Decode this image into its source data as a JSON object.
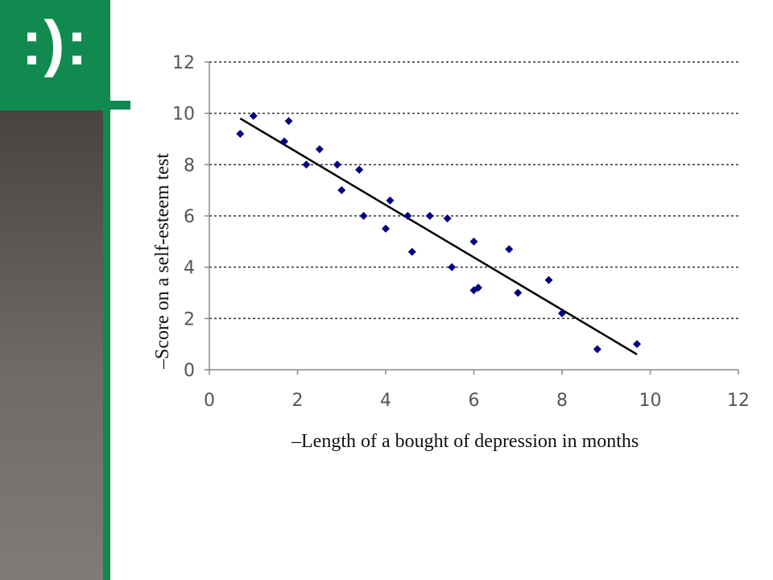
{
  "logo": {
    "text": ":):"
  },
  "colors": {
    "brand_green": "#118a4f",
    "marker": "#000080",
    "trendline": "#000000"
  },
  "chart_data": {
    "type": "scatter",
    "title": "",
    "xlabel": "–Length of a bought of depression in months",
    "ylabel": "–Score on a self-esteem test",
    "xlim": [
      0,
      12
    ],
    "ylim": [
      0,
      12
    ],
    "x_ticks": [
      0,
      2,
      4,
      6,
      8,
      10,
      12
    ],
    "y_ticks": [
      0,
      2,
      4,
      6,
      8,
      10,
      12
    ],
    "grid": "horizontal dashed",
    "legend": "none",
    "marker": "diamond",
    "points": [
      [
        0.7,
        9.2
      ],
      [
        1.0,
        9.9
      ],
      [
        1.7,
        8.9
      ],
      [
        1.8,
        9.7
      ],
      [
        2.2,
        8.0
      ],
      [
        2.5,
        8.6
      ],
      [
        2.9,
        8.0
      ],
      [
        3.0,
        7.0
      ],
      [
        3.4,
        7.8
      ],
      [
        3.5,
        6.0
      ],
      [
        4.0,
        5.5
      ],
      [
        4.1,
        6.6
      ],
      [
        4.5,
        6.0
      ],
      [
        4.6,
        4.6
      ],
      [
        5.0,
        6.0
      ],
      [
        5.4,
        5.9
      ],
      [
        5.5,
        4.0
      ],
      [
        6.0,
        5.0
      ],
      [
        6.0,
        3.1
      ],
      [
        6.1,
        3.2
      ],
      [
        6.8,
        4.7
      ],
      [
        7.0,
        3.0
      ],
      [
        7.7,
        3.5
      ],
      [
        8.0,
        2.2
      ],
      [
        8.8,
        0.8
      ],
      [
        9.7,
        1.0
      ]
    ],
    "trendline": {
      "x": [
        0.7,
        9.7
      ],
      "y": [
        9.8,
        0.6
      ]
    }
  }
}
